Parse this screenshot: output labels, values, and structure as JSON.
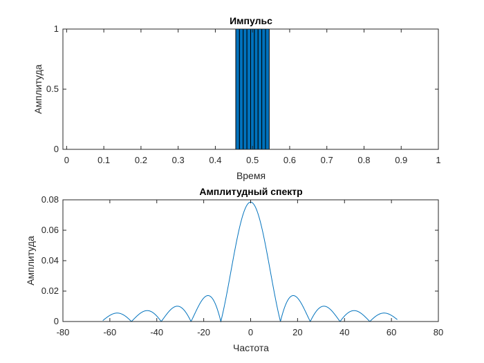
{
  "chart_data": [
    {
      "type": "bar",
      "title": "Импульс",
      "xlabel": "Время",
      "ylabel": "Амплитуда",
      "xlim": [
        -0.01,
        1.0
      ],
      "ylim": [
        0,
        1
      ],
      "xticks": [
        "0",
        "0.1",
        "0.2",
        "0.3",
        "0.4",
        "0.5",
        "0.6",
        "0.7",
        "0.8",
        "0.9",
        "1"
      ],
      "yticks": [
        "0",
        "0.5",
        "1"
      ],
      "x": [
        0.46,
        0.47,
        0.48,
        0.49,
        0.5,
        0.51,
        0.52,
        0.53,
        0.54
      ],
      "values": [
        1,
        1,
        1,
        1,
        1,
        1,
        1,
        1,
        1
      ],
      "grid": false,
      "colors": {
        "bar_fill": "#0072BD",
        "bar_edge": "#000000"
      }
    },
    {
      "type": "line",
      "title": "Амплитудный спектр",
      "xlabel": "Частота",
      "ylabel": "Амплитуда",
      "xlim": [
        -80,
        80
      ],
      "ylim": [
        0,
        0.08
      ],
      "xticks": [
        "-80",
        "-60",
        "-40",
        "-20",
        "0",
        "20",
        "40",
        "60",
        "80"
      ],
      "yticks": [
        "0",
        "0.02",
        "0.04",
        "0.06",
        "0.08"
      ],
      "x_range": [
        -63,
        62.5
      ],
      "peak": 0.0785,
      "first_null": 12.7,
      "grid": false,
      "colors": {
        "line": "#0072BD"
      }
    }
  ]
}
